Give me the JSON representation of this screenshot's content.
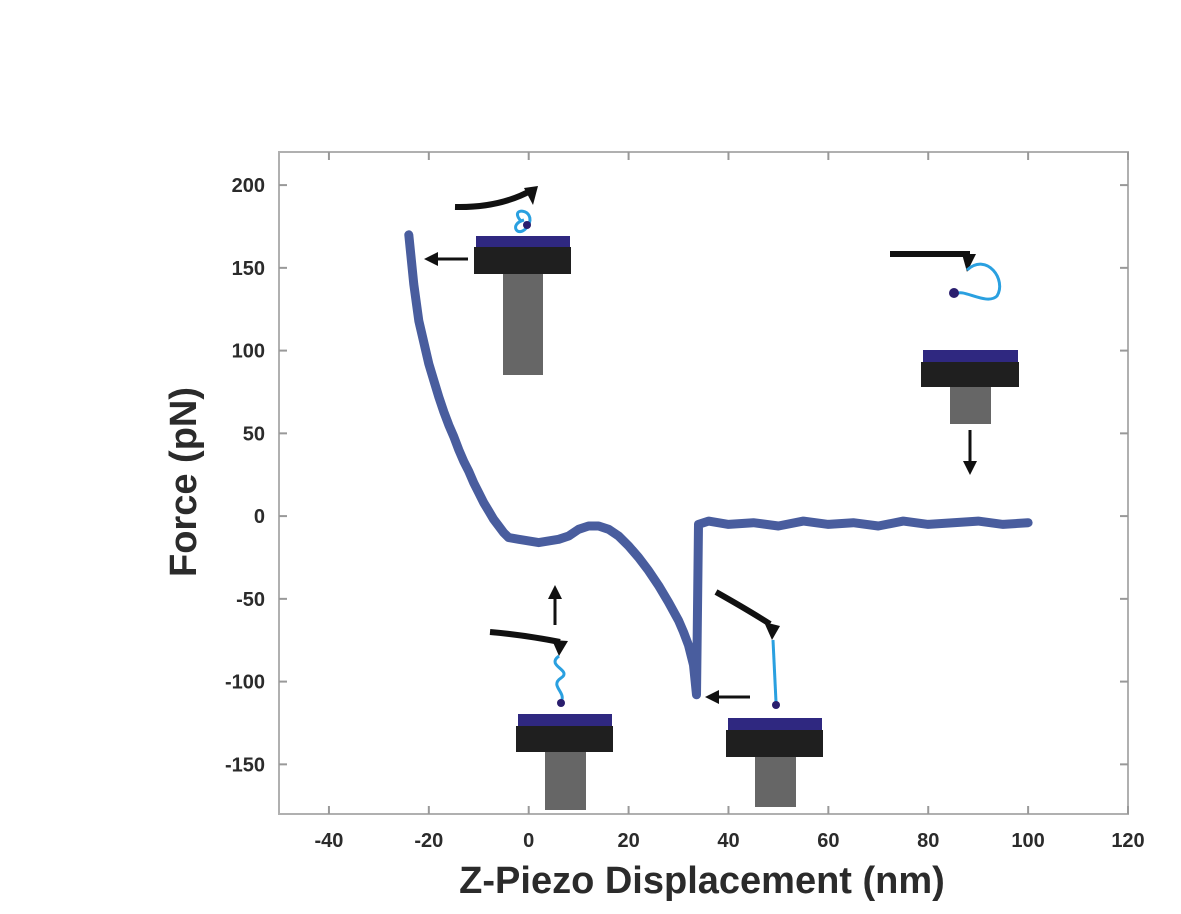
{
  "chart_data": {
    "type": "line",
    "title": "",
    "xlabel": "Z-Piezo Displacement (nm)",
    "ylabel": "Force (pN)",
    "xlim": [
      -50,
      120
    ],
    "ylim": [
      -180,
      220
    ],
    "xticks": [
      -40,
      -20,
      0,
      20,
      40,
      60,
      80,
      100,
      120
    ],
    "yticks": [
      200,
      150,
      100,
      50,
      0,
      -50,
      -100,
      -150
    ],
    "grid": false,
    "legend": "none",
    "series": [
      {
        "color": "#3a4f96",
        "x": [
          -24,
          -23,
          -22,
          -21,
          -20,
          -19,
          -18,
          -17,
          -16,
          -15,
          -14,
          -13,
          -12,
          -11,
          -10,
          -9,
          -8,
          -7,
          -6,
          -5,
          -4,
          -2,
          0,
          2,
          4,
          6,
          8,
          10,
          12,
          14,
          16,
          18,
          20,
          22,
          24,
          26,
          28,
          30,
          31,
          32,
          33,
          33.6,
          34,
          36,
          40,
          45,
          50,
          55,
          60,
          65,
          70,
          75,
          80,
          85,
          90,
          95,
          100
        ],
        "y": [
          170,
          140,
          118,
          105,
          92,
          82,
          72,
          63,
          55,
          48,
          40,
          33,
          27,
          20,
          14,
          8,
          3,
          -2,
          -6,
          -10,
          -13,
          -14,
          -15,
          -16,
          -15,
          -14,
          -12,
          -8,
          -6,
          -6,
          -8,
          -12,
          -18,
          -25,
          -33,
          -42,
          -52,
          -63,
          -70,
          -78,
          -90,
          -108,
          -5,
          -3,
          -5,
          -4,
          -6,
          -3,
          -5,
          -4,
          -6,
          -3,
          -5,
          -4,
          -3,
          -5,
          -4
        ]
      }
    ],
    "inset_arrows": [
      {
        "name": "arrow-to-peak",
        "direction": "left"
      },
      {
        "name": "arrow-to-baseline-left",
        "direction": "up"
      },
      {
        "name": "arrow-to-rupture",
        "direction": "left"
      },
      {
        "name": "arrow-to-baseline-right",
        "direction": "down"
      }
    ]
  }
}
